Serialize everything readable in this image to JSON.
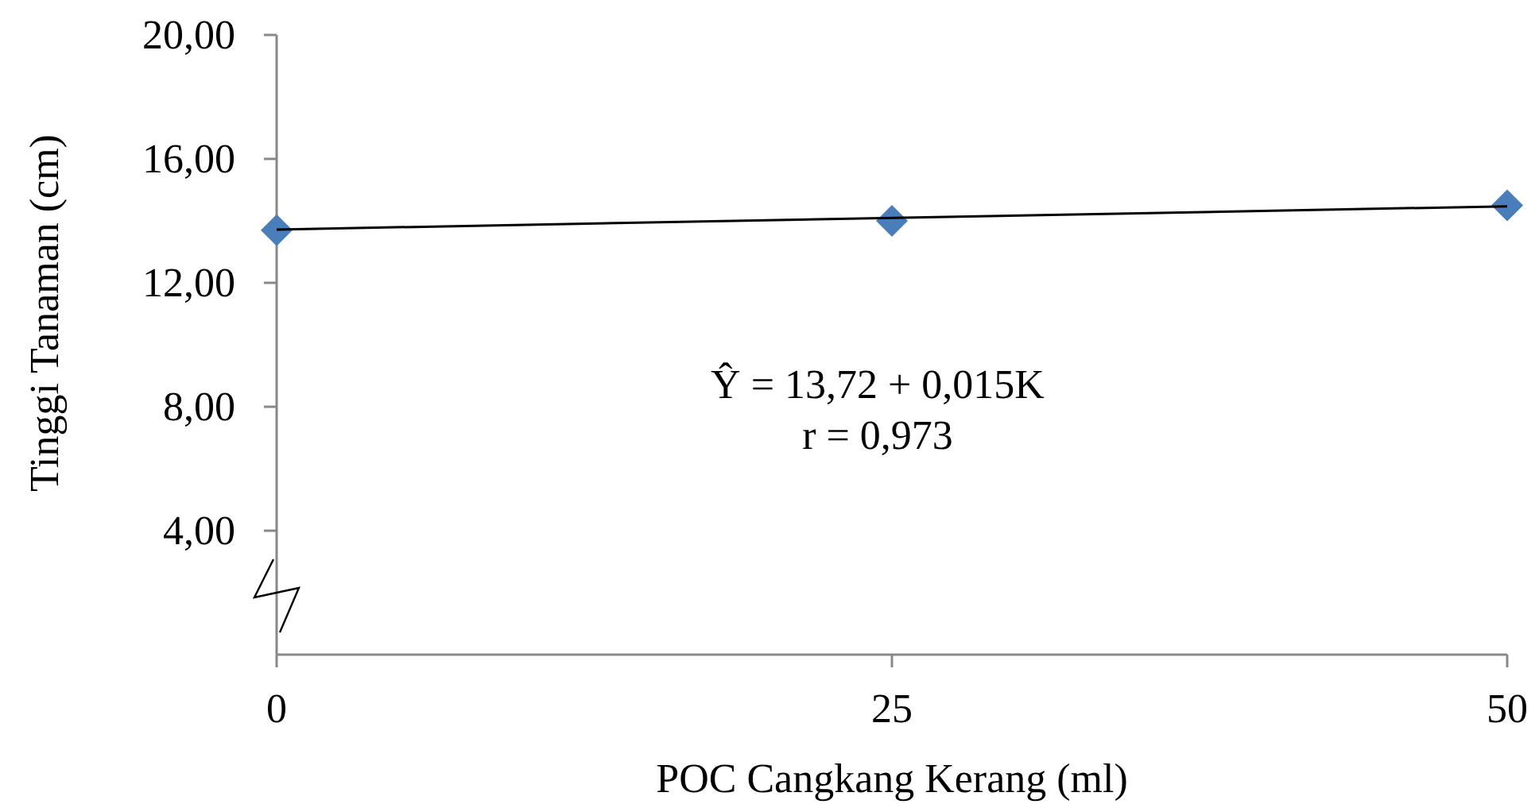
{
  "chart_data": {
    "type": "scatter",
    "xlabel": "POC Cangkang Kerang (ml)",
    "ylabel": "Tinggi Tanaman (cm)",
    "x": [
      0,
      25,
      50
    ],
    "series": [
      {
        "color": "#4a7ebb",
        "marker": "diamond",
        "values": [
          13.7,
          14.0,
          14.5
        ]
      },
      {
        "type": "line",
        "color": "#000000",
        "line_style": "solid",
        "marker": "none",
        "x": [
          0,
          50
        ],
        "values": [
          13.72,
          14.47
        ]
      }
    ],
    "xlim": [
      0,
      50
    ],
    "xticks": [
      0,
      25,
      50
    ],
    "ylim": [
      0,
      20
    ],
    "yticks": [
      {
        "value": 4,
        "label": "4,00"
      },
      {
        "value": 8,
        "label": "8,00"
      },
      {
        "value": 12,
        "label": "12,00"
      },
      {
        "value": 16,
        "label": "16,00"
      },
      {
        "value": 20,
        "label": "20,00"
      }
    ],
    "grid": false,
    "annotations": [
      "Ŷ = 13,72 + 0,015K",
      "r = 0,973"
    ]
  }
}
